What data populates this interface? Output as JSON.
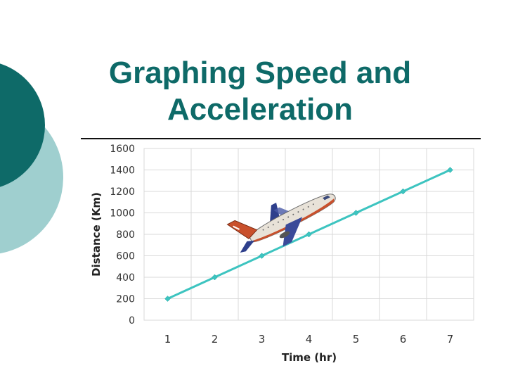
{
  "slide": {
    "title_line1": "Graphing Speed and",
    "title_line2": "Acceleration"
  },
  "colors": {
    "teal_dark": "#0e6a68",
    "teal_light": "#9fcfcf",
    "series": "#3dc4c0",
    "grid": "#d9d9d9"
  },
  "chart_data": {
    "type": "line",
    "x": [
      1,
      2,
      3,
      4,
      5,
      6,
      7
    ],
    "series": [
      {
        "values": [
          200,
          400,
          600,
          800,
          1000,
          1200,
          1400
        ]
      }
    ],
    "xlabel": "Time (hr)",
    "ylabel": "Distance (Km)",
    "xticks": [
      "1",
      "2",
      "3",
      "4",
      "5",
      "6",
      "7"
    ],
    "yticks": [
      "0",
      "200",
      "400",
      "600",
      "800",
      "1000",
      "1200",
      "1400",
      "1600"
    ],
    "ylim": [
      0,
      1600
    ],
    "grid": true,
    "legend": "none",
    "decoration": "airplane-icon"
  }
}
